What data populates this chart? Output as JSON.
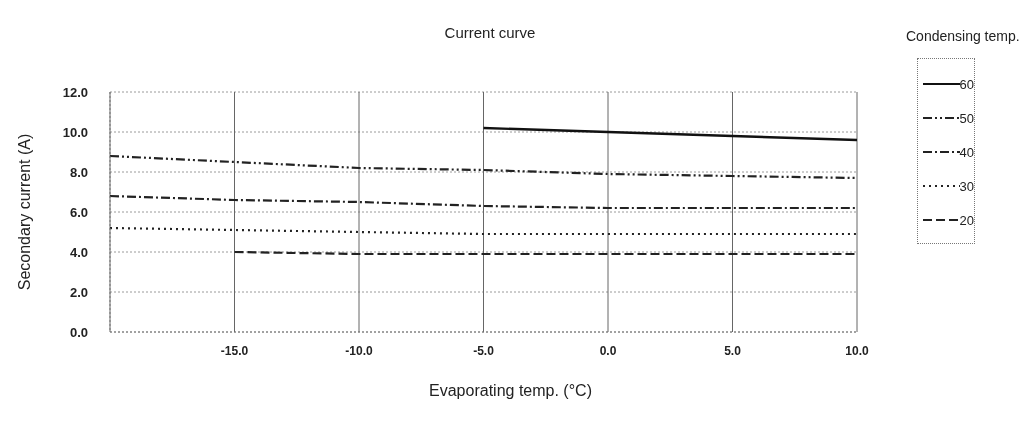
{
  "chart_data": {
    "type": "line",
    "title": "Current curve",
    "xlabel": "Evaporating temp. (°C)",
    "ylabel": "Secondary current (A)",
    "legend_title": "Condensing temp.",
    "x": [
      -20,
      -15,
      -10,
      -5,
      0,
      5,
      10
    ],
    "series": [
      {
        "name": "60",
        "color": "#111111",
        "line_style": "solid",
        "values": [
          null,
          null,
          null,
          10.2,
          10.0,
          9.8,
          9.6
        ]
      },
      {
        "name": "50",
        "color": "#222222",
        "line_style": "dashdotdot",
        "values": [
          8.8,
          8.5,
          8.2,
          8.1,
          7.9,
          7.8,
          7.7
        ]
      },
      {
        "name": "40",
        "color": "#222222",
        "line_style": "dashdot",
        "values": [
          6.8,
          6.6,
          6.5,
          6.3,
          6.2,
          6.2,
          6.2
        ]
      },
      {
        "name": "30",
        "color": "#222222",
        "line_style": "dotted",
        "values": [
          5.2,
          5.1,
          5.0,
          4.9,
          4.9,
          4.9,
          4.9
        ]
      },
      {
        "name": "20",
        "color": "#222222",
        "line_style": "dashed",
        "values": [
          null,
          4.0,
          3.9,
          3.9,
          3.9,
          3.9,
          3.9
        ]
      }
    ],
    "xlim": [
      -20,
      10
    ],
    "xticks": [
      {
        "value": -15,
        "label": "-15.0"
      },
      {
        "value": -10,
        "label": "-10.0"
      },
      {
        "value": -5,
        "label": "-5.0"
      },
      {
        "value": 0,
        "label": "0.0"
      },
      {
        "value": 5,
        "label": "5.0"
      },
      {
        "value": 10,
        "label": "10.0"
      }
    ],
    "ylim": [
      0,
      12
    ],
    "yticks": [
      {
        "value": 0,
        "label": "0.0"
      },
      {
        "value": 2,
        "label": "2.0"
      },
      {
        "value": 4,
        "label": "4.0"
      },
      {
        "value": 6,
        "label": "6.0"
      },
      {
        "value": 8,
        "label": "8.0"
      },
      {
        "value": 10,
        "label": "10.0"
      },
      {
        "value": 12,
        "label": "12.0"
      }
    ],
    "grid": true,
    "legend": "top right",
    "marker": "none"
  }
}
